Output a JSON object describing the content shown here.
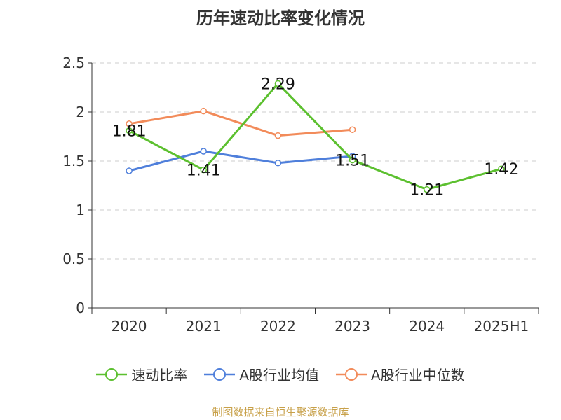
{
  "chart_data": {
    "type": "line",
    "title": "历年速动比率变化情况",
    "categories": [
      "2020",
      "2021",
      "2022",
      "2023",
      "2024",
      "2025H1"
    ],
    "ylim": [
      0,
      2.5
    ],
    "yticks": [
      "0",
      "0.5",
      "1",
      "1.5",
      "2",
      "2.5"
    ],
    "grid": true,
    "legend_position": "bottom",
    "series": [
      {
        "name": "速动比率",
        "color": "#5cc02f",
        "values": [
          1.81,
          1.41,
          2.29,
          1.51,
          1.21,
          1.42
        ],
        "labels": [
          "1.81",
          "1.41",
          "2.29",
          "1.51",
          "1.21",
          "1.42"
        ]
      },
      {
        "name": "A股行业均值",
        "color": "#4f7fdb",
        "values": [
          1.4,
          1.6,
          1.48,
          1.55,
          null,
          null
        ]
      },
      {
        "name": "A股行业中位数",
        "color": "#f28b5a",
        "values": [
          1.88,
          2.01,
          1.76,
          1.82,
          null,
          null
        ]
      }
    ]
  },
  "source": "制图数据来自恒生聚源数据库"
}
